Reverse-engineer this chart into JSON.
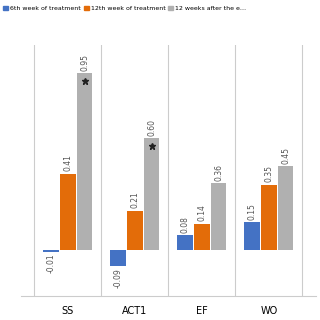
{
  "categories": [
    "SS",
    "ACT1",
    "EF",
    "WO"
  ],
  "series": {
    "blue": [
      -0.01,
      -0.09,
      0.08,
      0.15
    ],
    "orange": [
      0.41,
      0.21,
      0.14,
      0.35
    ],
    "gray": [
      0.95,
      0.6,
      0.36,
      0.45
    ]
  },
  "bar_colors": {
    "blue": "#4472C4",
    "orange": "#E36C09",
    "gray": "#B0B0B0"
  },
  "legend_labels": [
    "6th week of treatment",
    "12th week of treatment",
    "12 weeks after the e…"
  ],
  "star_on_bar": [
    {
      "cat_idx": 0,
      "series": "gray"
    },
    {
      "cat_idx": 1,
      "series": "gray"
    }
  ],
  "ylim": [
    -0.25,
    1.1
  ],
  "bar_width": 0.25,
  "figsize": [
    3.2,
    3.2
  ],
  "dpi": 100,
  "background_color": "#FFFFFF",
  "separator_color": "#CCCCCC",
  "label_fontsize": 5.5,
  "cat_fontsize": 7,
  "legend_fontsize": 4.5
}
